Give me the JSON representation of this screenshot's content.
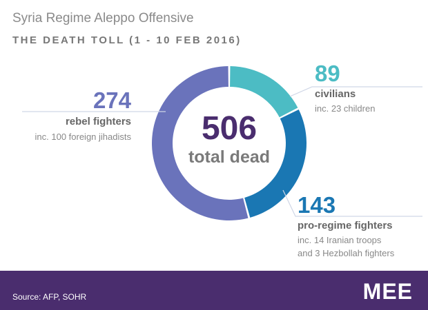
{
  "header": {
    "title": "Syria Regime Aleppo Offensive",
    "subtitle": "THE DEATH TOLL (1 - 10 FEB 2016)"
  },
  "center": {
    "total_value": "506",
    "total_label": "total dead"
  },
  "chart_data": {
    "type": "pie",
    "title": "Syria Regime Aleppo Offensive",
    "subtitle": "THE DEATH TOLL (1 - 10 FEB 2016)",
    "total": 506,
    "slices": [
      {
        "label": "civilians",
        "value": 89,
        "note1": "inc. 23 children",
        "note2": "",
        "color": "#4cbcc4"
      },
      {
        "label": "pro-regime fighters",
        "value": 143,
        "note1": "inc. 14 Iranian troops",
        "note2": "and 3 Hezbollah fighters",
        "color": "#1a77b3"
      },
      {
        "label": "rebel fighters",
        "value": 274,
        "note1": "inc. 100 foreign jihadists",
        "note2": "",
        "color": "#6a73bb"
      }
    ]
  },
  "colors": {
    "total_value": "#4a2d6e",
    "total_label": "#7a7a7a",
    "leader_line": "#cfd6e6",
    "footer_bg": "#4a2d6e"
  },
  "footer": {
    "source": "Source: AFP, SOHR",
    "logo": "MEE"
  }
}
